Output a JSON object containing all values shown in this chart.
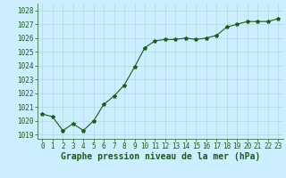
{
  "x": [
    0,
    1,
    2,
    3,
    4,
    5,
    6,
    7,
    8,
    9,
    10,
    11,
    12,
    13,
    14,
    15,
    16,
    17,
    18,
    19,
    20,
    21,
    22,
    23
  ],
  "y": [
    1020.5,
    1020.3,
    1019.3,
    1019.8,
    1019.3,
    1020.0,
    1021.2,
    1021.8,
    1022.6,
    1023.9,
    1025.3,
    1025.8,
    1025.9,
    1025.9,
    1026.0,
    1025.9,
    1026.0,
    1026.2,
    1026.8,
    1027.0,
    1027.2,
    1027.2,
    1027.2,
    1027.4
  ],
  "ylim": [
    1018.7,
    1028.5
  ],
  "yticks": [
    1019,
    1020,
    1021,
    1022,
    1023,
    1024,
    1025,
    1026,
    1027,
    1028
  ],
  "xticks": [
    0,
    1,
    2,
    3,
    4,
    5,
    6,
    7,
    8,
    9,
    10,
    11,
    12,
    13,
    14,
    15,
    16,
    17,
    18,
    19,
    20,
    21,
    22,
    23
  ],
  "xlabel": "Graphe pression niveau de la mer (hPa)",
  "line_color": "#1a5c1a",
  "marker": "*",
  "marker_size": 3,
  "background_color": "#cceeff",
  "grid_color": "#aadddd",
  "tick_color": "#1a5c1a",
  "label_color": "#1a5c1a",
  "tick_fontsize": 5.5,
  "xlabel_fontsize": 7
}
